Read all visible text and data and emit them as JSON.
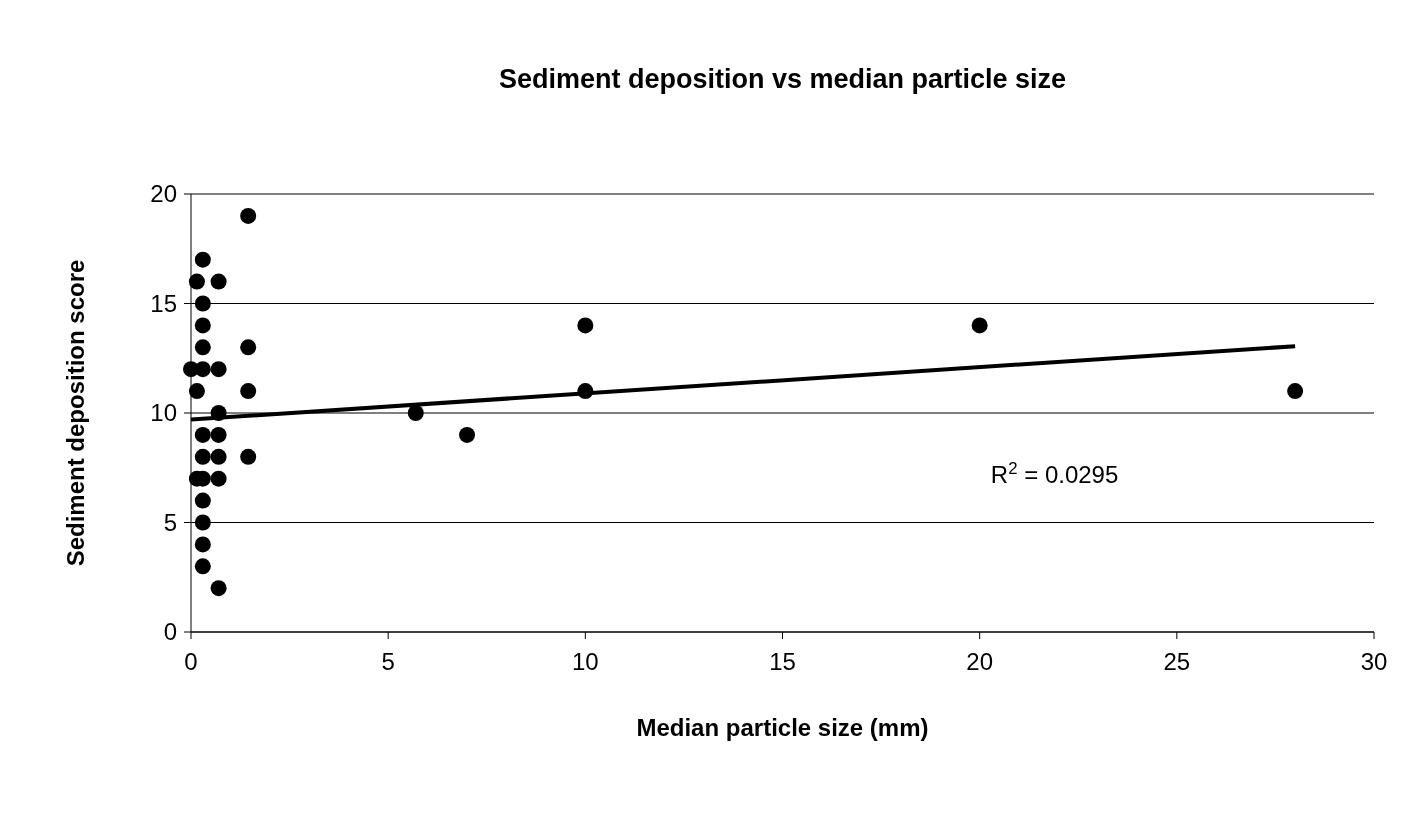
{
  "chart_data": {
    "type": "scatter",
    "title": "Sediment deposition vs median particle size",
    "xlabel": "Median particle size (mm)",
    "ylabel": "Sediment deposition score",
    "xlim": [
      0,
      30
    ],
    "xticks": [
      0,
      5,
      10,
      15,
      20,
      25,
      30
    ],
    "ylim": [
      0,
      20
    ],
    "yticks": [
      0,
      5,
      10,
      15,
      20
    ],
    "grid": "y",
    "series": [
      {
        "marker": "circle",
        "color": "#000000",
        "x": [
          1.45,
          0.3,
          0.15,
          0.7,
          0.3,
          0.3,
          0.3,
          1.45,
          0,
          0.3,
          0.7,
          0.15,
          1.45,
          0.7,
          0.3,
          0.7,
          0.3,
          0.7,
          1.45,
          0.15,
          0.3,
          0.7,
          0.3,
          0.3,
          0.3,
          0.3,
          0.7,
          5.7,
          7,
          10,
          10,
          20,
          28
        ],
        "values": [
          19,
          17,
          16,
          16,
          15,
          14,
          13,
          13,
          12,
          12,
          12,
          11,
          11,
          10,
          9,
          9,
          8,
          8,
          8,
          7,
          7,
          7,
          6,
          5,
          4,
          3,
          2,
          10,
          9,
          14,
          11,
          14,
          11
        ]
      },
      {
        "type": "line",
        "color": "#000000",
        "x": [
          0,
          28
        ],
        "values": [
          9.7,
          13.05
        ]
      }
    ],
    "annotations": [
      "R$^{2}$ = 0.0295"
    ]
  }
}
